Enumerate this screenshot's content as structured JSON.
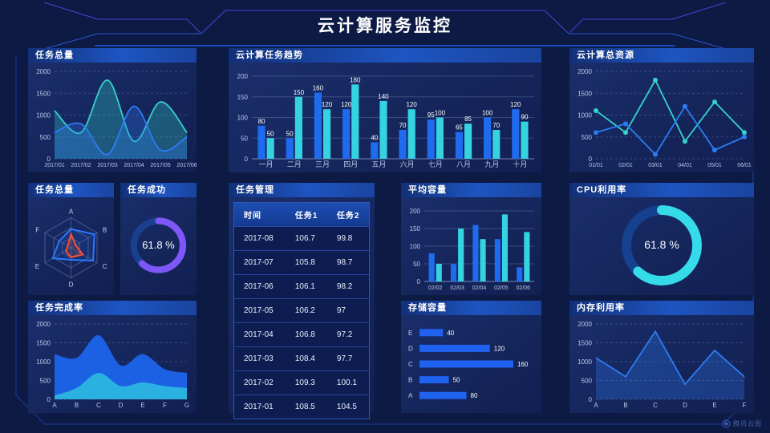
{
  "page": {
    "title": "云计算服务监控",
    "watermark": "腾讯云图"
  },
  "colors": {
    "background": "#0c1a44",
    "panel": "#15265c",
    "header_gradient_start": "#123078",
    "header_gradient_end": "#1e55c2",
    "blue": "#1f6bf0",
    "cyan": "#35d3e2",
    "purple": "#7d57f7",
    "red": "#ff4f2e"
  },
  "chart_data": [
    {
      "type": "area",
      "title": "任务总量",
      "x": [
        "2017/01",
        "2017/02",
        "2017/03",
        "2017/04",
        "2017/05",
        "2017/06"
      ],
      "series": [
        {
          "name": "cyan-series",
          "color": "#35d3cb",
          "values": [
            1100,
            600,
            1800,
            400,
            1300,
            600
          ]
        },
        {
          "name": "blue-series",
          "color": "#2d7bf3",
          "values": [
            600,
            800,
            100,
            1200,
            200,
            500
          ]
        }
      ],
      "ylim": [
        0,
        2000
      ],
      "yticks": [
        0,
        500,
        1000,
        1500,
        2000
      ],
      "smooth": true,
      "fill": 0.3,
      "xfs": 7,
      "grid": "dashed"
    },
    {
      "type": "bar",
      "title": "云计算任务趋势",
      "categories": [
        "一月",
        "二月",
        "三月",
        "四月",
        "五月",
        "六月",
        "七月",
        "八月",
        "九月",
        "十月"
      ],
      "series": [
        {
          "name": "任务1",
          "color": "#1f6bf0",
          "values": [
            80,
            50,
            160,
            120,
            40,
            70,
            95,
            65,
            100,
            120
          ]
        },
        {
          "name": "任务2",
          "color": "#35d3e2",
          "values": [
            50,
            150,
            120,
            180,
            140,
            120,
            100,
            85,
            70,
            90
          ]
        }
      ],
      "ylim": [
        0,
        200
      ],
      "yticks": [
        0,
        50,
        100,
        150,
        200
      ],
      "labels": true,
      "xfs": 9
    },
    {
      "type": "line",
      "title": "云计算总资源",
      "x": [
        "01/01",
        "02/01",
        "03/01",
        "04/01",
        "05/01",
        "06/01"
      ],
      "series": [
        {
          "name": "cyan-series",
          "color": "#35d3cb",
          "values": [
            1100,
            600,
            1800,
            400,
            1300,
            600
          ]
        },
        {
          "name": "blue-series",
          "color": "#2d7bf3",
          "values": [
            600,
            800,
            100,
            1200,
            200,
            500
          ]
        }
      ],
      "ylim": [
        0,
        2000
      ],
      "yticks": [
        0,
        500,
        1000,
        1500,
        2000
      ],
      "smooth": false,
      "markers": true,
      "xfs": 7,
      "grid": "dashed"
    },
    {
      "type": "radar",
      "title": "任务总量",
      "axes": [
        "A",
        "B",
        "C",
        "D",
        "E",
        "F"
      ],
      "max": 100,
      "series": [
        {
          "name": "blue-polygon",
          "color": "#2979ff",
          "values": [
            62,
            90,
            85,
            40,
            70,
            45
          ]
        },
        {
          "name": "red-polygon",
          "color": "#ff4f2e",
          "values": [
            45,
            18,
            45,
            32,
            20,
            12
          ]
        }
      ]
    },
    {
      "type": "donut",
      "title": "任务成功",
      "value": 61.8,
      "label": "61.8 %",
      "color": "#7d57f7",
      "track": "#1b3f8f"
    },
    {
      "type": "table",
      "title": "任务管理",
      "headers": [
        "时间",
        "任务1",
        "任务2"
      ],
      "rows": [
        [
          "2017-08",
          "106.7",
          "99.8"
        ],
        [
          "2017-07",
          "105.8",
          "98.7"
        ],
        [
          "2017-06",
          "106.1",
          "98.2"
        ],
        [
          "2017-05",
          "106.2",
          "97"
        ],
        [
          "2017-04",
          "106.8",
          "97.2"
        ],
        [
          "2017-03",
          "108.4",
          "97.7"
        ],
        [
          "2017-02",
          "109.3",
          "100.1"
        ],
        [
          "2017-01",
          "108.5",
          "104.5"
        ]
      ]
    },
    {
      "type": "bar",
      "title": "平均容量",
      "categories": [
        "02/02",
        "02/03",
        "02/04",
        "02/05",
        "02/06"
      ],
      "series": [
        {
          "name": "blue-series",
          "color": "#1f6bf0",
          "values": [
            80,
            50,
            160,
            120,
            40
          ]
        },
        {
          "name": "cyan-series",
          "color": "#35d3e2",
          "values": [
            50,
            150,
            120,
            190,
            140
          ]
        }
      ],
      "ylim": [
        0,
        200
      ],
      "yticks": [
        0,
        50,
        100,
        150,
        200
      ],
      "labels": false,
      "xfs": 7
    },
    {
      "type": "donut",
      "title": "CPU利用率",
      "value": 61.8,
      "label": "61.8 %",
      "color": "#35dbe8",
      "track": "#16418f"
    },
    {
      "type": "area2",
      "title": "任务完成率",
      "x": [
        "A",
        "B",
        "C",
        "D",
        "E",
        "F",
        "G"
      ],
      "series": [
        {
          "name": "blue-area",
          "color": "#1d63e8",
          "values": [
            1200,
            1100,
            1700,
            900,
            1200,
            800,
            700
          ]
        },
        {
          "name": "cyan-area",
          "color": "#2cb4e0",
          "values": [
            100,
            300,
            700,
            350,
            450,
            350,
            300
          ]
        }
      ],
      "ylim": [
        0,
        2000
      ],
      "yticks": [
        0,
        500,
        1000,
        1500,
        2000
      ],
      "smooth": true,
      "fill": 0.97,
      "noStroke": true,
      "xfs": 8,
      "grid": "dashed"
    },
    {
      "type": "hbar",
      "title": "存储容量",
      "categories": [
        "A",
        "B",
        "C",
        "D",
        "E"
      ],
      "values": [
        80,
        50,
        160,
        120,
        40
      ],
      "color": "#1f62f0",
      "xmax": 160
    },
    {
      "type": "area",
      "title": "内存利用率",
      "x": [
        "A",
        "B",
        "C",
        "D",
        "E",
        "F"
      ],
      "series": [
        {
          "name": "blue-series",
          "color": "#2d7bf3",
          "values": [
            1100,
            600,
            1800,
            400,
            1300,
            600
          ]
        }
      ],
      "ylim": [
        0,
        2000
      ],
      "yticks": [
        0,
        500,
        1000,
        1500,
        2000
      ],
      "smooth": false,
      "fill": 0.3,
      "xfs": 8,
      "grid": "dashed"
    }
  ]
}
